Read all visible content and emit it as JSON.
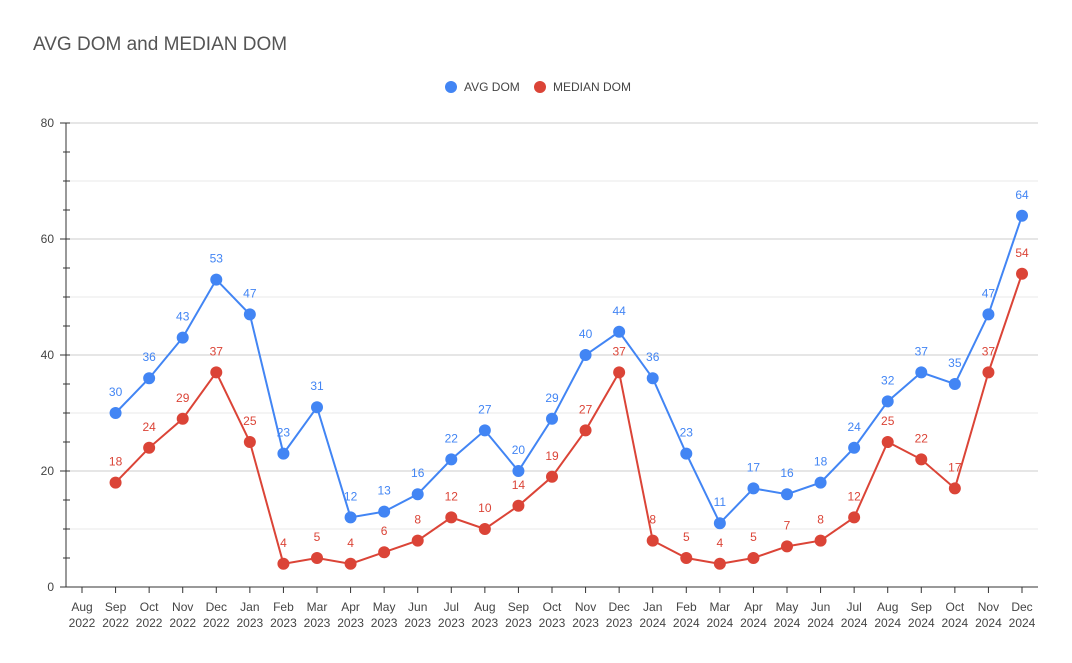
{
  "chart_data": {
    "type": "line",
    "title": "AVG DOM and MEDIAN DOM",
    "xlabel": "",
    "ylabel": "",
    "ylim": [
      0,
      80
    ],
    "yticks": [
      "0",
      "20",
      "40",
      "60",
      "80"
    ],
    "grid": true,
    "legend_position": "top-center",
    "categories": [
      [
        "Aug",
        "2022"
      ],
      [
        "Sep",
        "2022"
      ],
      [
        "Oct",
        "2022"
      ],
      [
        "Nov",
        "2022"
      ],
      [
        "Dec",
        "2022"
      ],
      [
        "Jan",
        "2023"
      ],
      [
        "Feb",
        "2023"
      ],
      [
        "Mar",
        "2023"
      ],
      [
        "Apr",
        "2023"
      ],
      [
        "May",
        "2023"
      ],
      [
        "Jun",
        "2023"
      ],
      [
        "Jul",
        "2023"
      ],
      [
        "Aug",
        "2023"
      ],
      [
        "Sep",
        "2023"
      ],
      [
        "Oct",
        "2023"
      ],
      [
        "Nov",
        "2023"
      ],
      [
        "Dec",
        "2023"
      ],
      [
        "Jan",
        "2024"
      ],
      [
        "Feb",
        "2024"
      ],
      [
        "Mar",
        "2024"
      ],
      [
        "Apr",
        "2024"
      ],
      [
        "May",
        "2024"
      ],
      [
        "Jun",
        "2024"
      ],
      [
        "Jul",
        "2024"
      ],
      [
        "Aug",
        "2024"
      ],
      [
        "Sep",
        "2024"
      ],
      [
        "Oct",
        "2024"
      ],
      [
        "Nov",
        "2024"
      ],
      [
        "Dec",
        "2024"
      ]
    ],
    "series": [
      {
        "name": "AVG DOM",
        "color": "#4285f4",
        "values": [
          null,
          30,
          36,
          43,
          53,
          47,
          23,
          31,
          12,
          13,
          16,
          22,
          27,
          20,
          29,
          40,
          44,
          36,
          23,
          11,
          17,
          16,
          18,
          24,
          32,
          37,
          35,
          47,
          64
        ]
      },
      {
        "name": "MEDIAN DOM",
        "color": "#db4437",
        "values": [
          null,
          18,
          24,
          29,
          37,
          25,
          4,
          5,
          4,
          6,
          8,
          12,
          10,
          14,
          19,
          27,
          37,
          8,
          5,
          4,
          5,
          7,
          8,
          12,
          25,
          22,
          17,
          37,
          54
        ]
      }
    ]
  }
}
